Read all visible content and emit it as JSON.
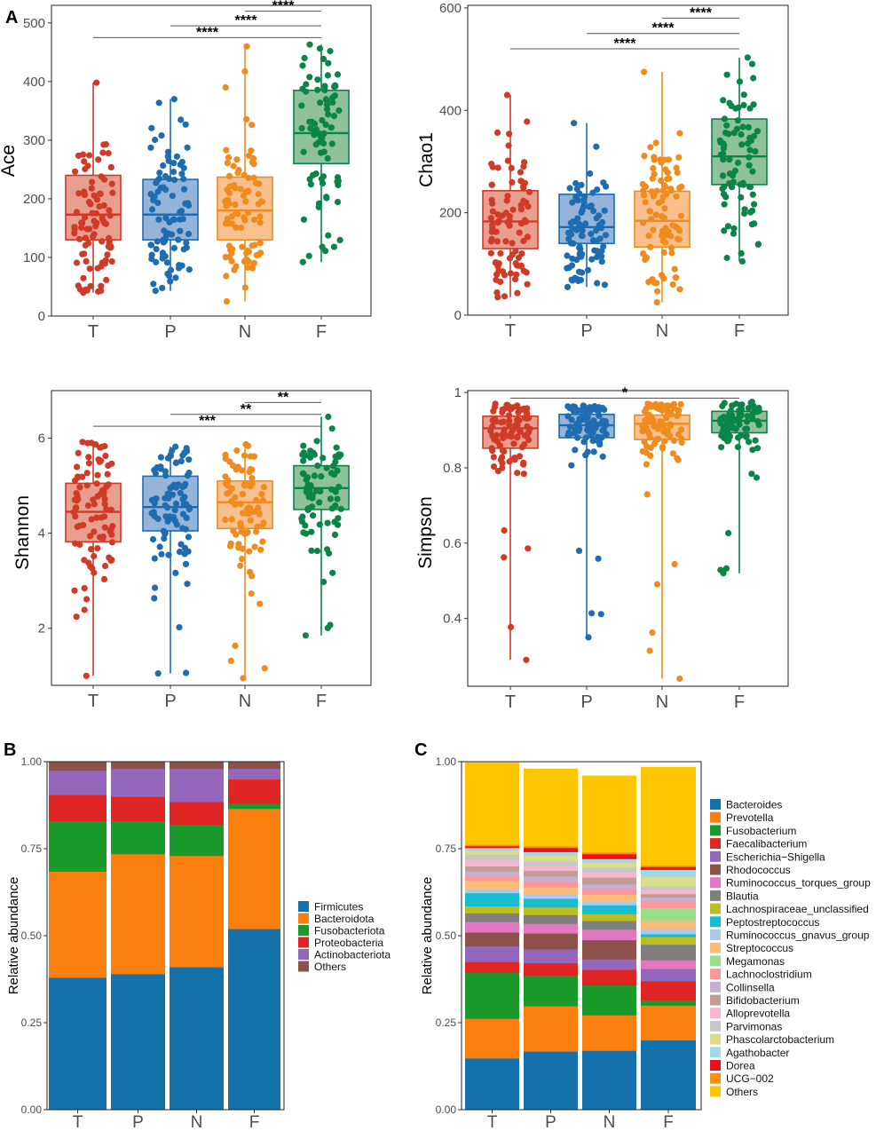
{
  "panel_labels": {
    "a": "A",
    "b": "B",
    "c": "C"
  },
  "colors": {
    "groups": [
      "#d03b28",
      "#1f6cb0",
      "#f08c1e",
      "#0b8448"
    ],
    "fills": [
      "#e89f8f",
      "#95b4d9",
      "#f7c08e",
      "#8fc19d"
    ]
  },
  "chart_data": [
    {
      "type": "box",
      "panel": "ace",
      "ylabel": "Ace",
      "categories": [
        "T",
        "P",
        "N",
        "F"
      ],
      "ylim": [
        0,
        530
      ],
      "yticks": [
        0,
        100,
        200,
        300,
        400,
        500
      ],
      "groups": [
        {
          "name": "T",
          "min": 40,
          "q1": 130,
          "median": 173,
          "q3": 240,
          "max": 398,
          "n": 90
        },
        {
          "name": "P",
          "min": 43,
          "q1": 130,
          "median": 173,
          "q3": 233,
          "max": 370,
          "n": 90
        },
        {
          "name": "N",
          "min": 25,
          "q1": 130,
          "median": 180,
          "q3": 237,
          "max": 460,
          "n": 90
        },
        {
          "name": "F",
          "min": 92,
          "q1": 260,
          "median": 312,
          "q3": 385,
          "max": 463,
          "n": 80
        }
      ],
      "comparisons": [
        {
          "from": "N",
          "to": "F",
          "label": "****",
          "y": 520
        },
        {
          "from": "P",
          "to": "F",
          "label": "****",
          "y": 495
        },
        {
          "from": "T",
          "to": "F",
          "label": "****",
          "y": 475
        }
      ]
    },
    {
      "type": "box",
      "panel": "chao1",
      "ylabel": "Chao1",
      "categories": [
        "T",
        "P",
        "N",
        "F"
      ],
      "ylim": [
        0,
        605
      ],
      "yticks": [
        0,
        200,
        400,
        600
      ],
      "groups": [
        {
          "name": "T",
          "min": 35,
          "q1": 130,
          "median": 183,
          "q3": 243,
          "max": 430,
          "n": 90
        },
        {
          "name": "P",
          "min": 55,
          "q1": 140,
          "median": 172,
          "q3": 236,
          "max": 375,
          "n": 90
        },
        {
          "name": "N",
          "min": 25,
          "q1": 133,
          "median": 184,
          "q3": 242,
          "max": 475,
          "n": 90
        },
        {
          "name": "F",
          "min": 105,
          "q1": 255,
          "median": 310,
          "q3": 383,
          "max": 503,
          "n": 80
        }
      ],
      "comparisons": [
        {
          "from": "N",
          "to": "F",
          "label": "****",
          "y": 580
        },
        {
          "from": "P",
          "to": "F",
          "label": "****",
          "y": 550
        },
        {
          "from": "T",
          "to": "F",
          "label": "****",
          "y": 520
        }
      ]
    },
    {
      "type": "box",
      "panel": "shannon",
      "ylabel": "Shannon",
      "categories": [
        "T",
        "P",
        "N",
        "F"
      ],
      "ylim": [
        0.8,
        7.0
      ],
      "yticks": [
        2,
        4,
        6
      ],
      "groups": [
        {
          "name": "T",
          "min": 1.0,
          "q1": 3.82,
          "median": 4.45,
          "q3": 5.05,
          "max": 5.92,
          "n": 90
        },
        {
          "name": "P",
          "min": 1.05,
          "q1": 4.05,
          "median": 4.55,
          "q3": 5.2,
          "max": 5.82,
          "n": 90
        },
        {
          "name": "N",
          "min": 0.95,
          "q1": 4.1,
          "median": 4.65,
          "q3": 5.1,
          "max": 5.87,
          "n": 90
        },
        {
          "name": "F",
          "min": 1.85,
          "q1": 4.5,
          "median": 4.95,
          "q3": 5.42,
          "max": 6.45,
          "n": 80
        }
      ],
      "comparisons": [
        {
          "from": "N",
          "to": "F",
          "label": "**",
          "y": 6.75
        },
        {
          "from": "P",
          "to": "F",
          "label": "**",
          "y": 6.5
        },
        {
          "from": "T",
          "to": "F",
          "label": "***",
          "y": 6.25
        }
      ]
    },
    {
      "type": "box",
      "panel": "simpson",
      "ylabel": "Simpson",
      "categories": [
        "T",
        "P",
        "N",
        "F"
      ],
      "ylim": [
        0.22,
        1.005
      ],
      "yticks": [
        0.4,
        0.6,
        0.8,
        1.0
      ],
      "groups": [
        {
          "name": "T",
          "min": 0.29,
          "q1": 0.852,
          "median": 0.905,
          "q3": 0.937,
          "max": 0.97,
          "n": 90
        },
        {
          "name": "P",
          "min": 0.35,
          "q1": 0.88,
          "median": 0.913,
          "q3": 0.942,
          "max": 0.965,
          "n": 90
        },
        {
          "name": "N",
          "min": 0.24,
          "q1": 0.875,
          "median": 0.917,
          "q3": 0.94,
          "max": 0.97,
          "n": 90
        },
        {
          "name": "F",
          "min": 0.52,
          "q1": 0.893,
          "median": 0.925,
          "q3": 0.95,
          "max": 0.975,
          "n": 80
        }
      ],
      "comparisons": [
        {
          "from": "T",
          "to": "F",
          "label": "*",
          "y": 0.985
        }
      ]
    },
    {
      "type": "stacked-bar",
      "panel": "phylum",
      "categories": [
        "T",
        "P",
        "N",
        "F"
      ],
      "ylabel": "Relative abundance",
      "ylim": [
        0,
        1
      ],
      "yticks": [
        0,
        0.25,
        0.5,
        0.75,
        1.0
      ],
      "ytick_labels": [
        "0.00",
        "0.25",
        "0.50",
        "0.75",
        "1.00"
      ],
      "series": [
        {
          "name": "Firmicutes",
          "color": "#1571ab",
          "values": [
            0.38,
            0.39,
            0.41,
            0.52
          ]
        },
        {
          "name": "Bacteroidota",
          "color": "#fa7f0e",
          "values": [
            0.305,
            0.345,
            0.32,
            0.345
          ]
        },
        {
          "name": "Fusobacteriota",
          "color": "#1b9a2c",
          "values": [
            0.145,
            0.095,
            0.09,
            0.015
          ]
        },
        {
          "name": "Proteobacteria",
          "color": "#e02525",
          "values": [
            0.075,
            0.07,
            0.065,
            0.07
          ]
        },
        {
          "name": "Actinobacteriota",
          "color": "#9467bd",
          "values": [
            0.07,
            0.08,
            0.095,
            0.03
          ]
        },
        {
          "name": "Others",
          "color": "#8c5249",
          "values": [
            0.025,
            0.02,
            0.02,
            0.02
          ]
        }
      ]
    },
    {
      "type": "stacked-bar",
      "panel": "genus",
      "categories": [
        "T",
        "P",
        "N",
        "F"
      ],
      "ylabel": "Relative abundance",
      "ylim": [
        0,
        1
      ],
      "yticks": [
        0,
        0.25,
        0.5,
        0.75,
        1.0
      ],
      "ytick_labels": [
        "0.00",
        "0.25",
        "0.50",
        "0.75",
        "1.00"
      ],
      "series": [
        {
          "name": "Bacteroides",
          "color": "#1571ab",
          "values": [
            0.148,
            0.168,
            0.17,
            0.2
          ]
        },
        {
          "name": "Prevotella",
          "color": "#fa7f0e",
          "values": [
            0.114,
            0.13,
            0.102,
            0.1
          ]
        },
        {
          "name": "Fusobacterium",
          "color": "#1b9a2c",
          "values": [
            0.133,
            0.088,
            0.086,
            0.015
          ]
        },
        {
          "name": "Faecalibacterium",
          "color": "#e02525",
          "values": [
            0.03,
            0.036,
            0.045,
            0.055
          ]
        },
        {
          "name": "Escherichia−Shigella",
          "color": "#9467bd",
          "values": [
            0.045,
            0.04,
            0.03,
            0.035
          ]
        },
        {
          "name": "Rhodococcus",
          "color": "#8c5249",
          "values": [
            0.04,
            0.045,
            0.055,
            0.0
          ]
        },
        {
          "name": "Ruminococcus_torques_group",
          "color": "#e277c2",
          "values": [
            0.03,
            0.028,
            0.03,
            0.025
          ]
        },
        {
          "name": "Blautia",
          "color": "#7f7f7f",
          "values": [
            0.025,
            0.025,
            0.025,
            0.045
          ]
        },
        {
          "name": "Lachnospiraceae_unclassified",
          "color": "#bcbd21",
          "values": [
            0.02,
            0.022,
            0.02,
            0.022
          ]
        },
        {
          "name": "Peptostreptococcus",
          "color": "#17bcce",
          "values": [
            0.038,
            0.025,
            0.025,
            0.008
          ]
        },
        {
          "name": "Ruminococcus_gnavus_group",
          "color": "#aec8e8",
          "values": [
            0.01,
            0.012,
            0.01,
            0.015
          ]
        },
        {
          "name": "Streptococcus",
          "color": "#fdbb78",
          "values": [
            0.025,
            0.02,
            0.02,
            0.025
          ]
        },
        {
          "name": "Megamonas",
          "color": "#99df89",
          "values": [
            0.0,
            0.0,
            0.0,
            0.035
          ]
        },
        {
          "name": "Lachnoclostridium",
          "color": "#fd9896",
          "values": [
            0.015,
            0.018,
            0.018,
            0.02
          ]
        },
        {
          "name": "Collinsella",
          "color": "#c5b0d5",
          "values": [
            0.012,
            0.014,
            0.012,
            0.01
          ]
        },
        {
          "name": "Bifidobacterium",
          "color": "#c49c94",
          "values": [
            0.015,
            0.016,
            0.02,
            0.01
          ]
        },
        {
          "name": "Alloprevotella",
          "color": "#f6b6d2",
          "values": [
            0.018,
            0.014,
            0.015,
            0.012
          ]
        },
        {
          "name": "Parvimonas",
          "color": "#c7c7c7",
          "values": [
            0.015,
            0.014,
            0.014,
            0.01
          ]
        },
        {
          "name": "Phascolarctobacterium",
          "color": "#dbdb8d",
          "values": [
            0.012,
            0.016,
            0.014,
            0.028
          ]
        },
        {
          "name": "Agathobacter",
          "color": "#9edae5",
          "values": [
            0.008,
            0.01,
            0.01,
            0.02
          ]
        },
        {
          "name": "Dorea",
          "color": "#e8121c",
          "values": [
            0.005,
            0.012,
            0.014,
            0.008
          ]
        },
        {
          "name": "UCG−002",
          "color": "#fb8f0f",
          "values": [
            0.004,
            0.005,
            0.005,
            0.004
          ]
        },
        {
          "name": "Others",
          "color": "#fdc601",
          "values": [
            0.236,
            0.222,
            0.22,
            0.283
          ]
        }
      ]
    }
  ]
}
